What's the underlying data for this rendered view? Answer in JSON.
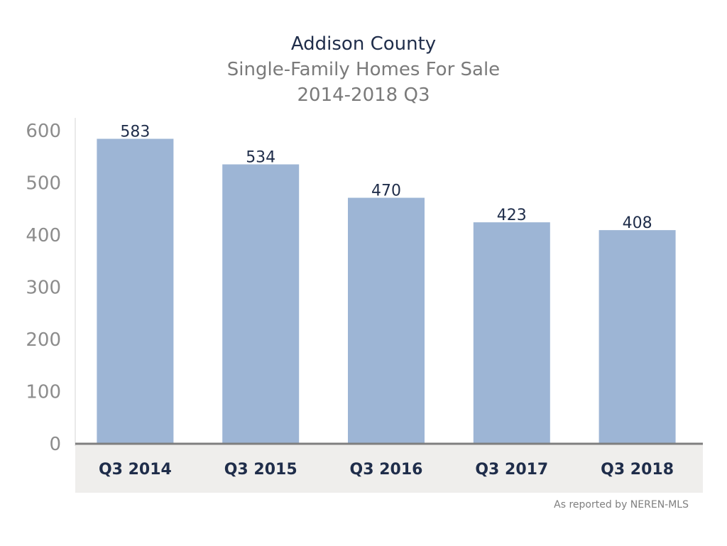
{
  "title": "Addison County",
  "subtitle": "Single-Family Homes For Sale",
  "subtitle2": "2014-2018 Q3",
  "source": "As reported by NEREN-MLS",
  "colors": {
    "bar": "#9db5d5",
    "axis": "#7f7f7f",
    "tick_text": "#8c8c8c",
    "value_text": "#1f2d4a",
    "category_text": "#1f2d4a",
    "category_band": "#efeeec"
  },
  "chart_data": {
    "type": "bar",
    "categories": [
      "Q3 2014",
      "Q3 2015",
      "Q3 2016",
      "Q3 2017",
      "Q3 2018"
    ],
    "values": [
      583,
      534,
      470,
      423,
      408
    ],
    "data_labels": [
      "583",
      "534",
      "470",
      "423",
      "408"
    ],
    "ylim": [
      0,
      600
    ],
    "yticks": [
      0,
      100,
      200,
      300,
      400,
      500,
      600
    ],
    "ytick_labels": [
      "0",
      "100",
      "200",
      "300",
      "400",
      "500",
      "600"
    ],
    "xlabel": "",
    "ylabel": "",
    "legend": "none",
    "grid": false
  }
}
